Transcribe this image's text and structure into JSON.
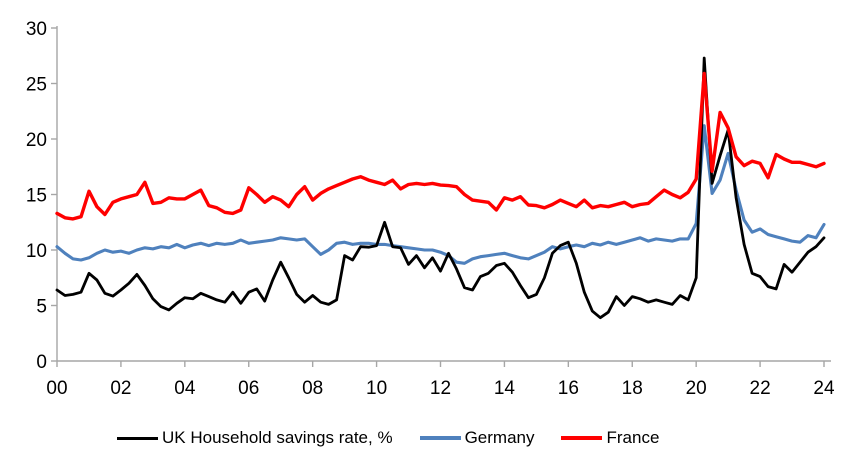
{
  "chart_data": {
    "type": "line",
    "title": "",
    "frequency": "quarterly",
    "x_start": "2000Q1",
    "x_end": "2024Q1",
    "grid": false,
    "legend_position": "bottom",
    "axis_color": "#a6a6a6",
    "label_color": "#000000",
    "x_axis": {
      "tick_labels": [
        "00",
        "02",
        "04",
        "06",
        "08",
        "10",
        "12",
        "14",
        "16",
        "18",
        "20",
        "22",
        "24"
      ],
      "tick_quarter_positions": [
        0,
        8,
        16,
        24,
        32,
        40,
        48,
        56,
        64,
        72,
        80,
        88,
        96
      ]
    },
    "y_axis": {
      "ticks": [
        0,
        5,
        10,
        15,
        20,
        25,
        30
      ],
      "range": [
        0,
        30
      ]
    },
    "draw_order": [
      1,
      0,
      2
    ],
    "series": [
      {
        "name": "UK Household savings rate, %",
        "color": "#000000",
        "stroke_width": 2.8,
        "values": [
          6.4,
          5.9,
          6.0,
          6.2,
          7.9,
          7.3,
          6.1,
          5.85,
          6.4,
          7.0,
          7.8,
          6.8,
          5.6,
          4.9,
          4.6,
          5.2,
          5.7,
          5.6,
          6.1,
          5.8,
          5.5,
          5.3,
          6.2,
          5.2,
          6.2,
          6.5,
          5.4,
          7.3,
          8.9,
          7.5,
          6.0,
          5.3,
          5.9,
          5.3,
          5.1,
          5.5,
          9.5,
          9.1,
          10.3,
          10.25,
          10.4,
          12.5,
          10.3,
          10.2,
          8.7,
          9.5,
          8.4,
          9.3,
          8.1,
          9.7,
          8.3,
          6.6,
          6.4,
          7.6,
          7.9,
          8.6,
          8.8,
          8.0,
          6.8,
          5.7,
          6.0,
          7.5,
          9.7,
          10.4,
          10.7,
          8.8,
          6.2,
          4.5,
          3.9,
          4.4,
          5.8,
          5.0,
          5.8,
          5.6,
          5.3,
          5.5,
          5.3,
          5.1,
          5.9,
          5.5,
          7.5,
          27.3,
          16.0,
          18.5,
          20.8,
          14.7,
          10.5,
          7.9,
          7.6,
          6.7,
          6.5,
          8.7,
          8.0,
          8.9,
          9.8,
          10.3,
          11.1
        ]
      },
      {
        "name": "Germany",
        "color": "#4f81bd",
        "stroke_width": 3.1,
        "values": [
          10.3,
          9.7,
          9.2,
          9.1,
          9.3,
          9.7,
          10.0,
          9.8,
          9.9,
          9.7,
          10.0,
          10.2,
          10.1,
          10.3,
          10.2,
          10.5,
          10.2,
          10.45,
          10.6,
          10.4,
          10.6,
          10.5,
          10.6,
          10.9,
          10.6,
          10.7,
          10.8,
          10.9,
          11.1,
          11.0,
          10.9,
          11.0,
          10.3,
          9.6,
          10.0,
          10.6,
          10.7,
          10.5,
          10.6,
          10.6,
          10.5,
          10.5,
          10.4,
          10.3,
          10.2,
          10.1,
          10.0,
          10.0,
          9.8,
          9.5,
          8.9,
          8.8,
          9.2,
          9.4,
          9.5,
          9.6,
          9.7,
          9.5,
          9.3,
          9.2,
          9.5,
          9.8,
          10.3,
          10.1,
          10.3,
          10.45,
          10.3,
          10.6,
          10.45,
          10.7,
          10.5,
          10.7,
          10.9,
          11.1,
          10.8,
          11.0,
          10.9,
          10.8,
          11.0,
          11.0,
          12.4,
          21.2,
          15.1,
          16.3,
          18.7,
          15.4,
          12.7,
          11.6,
          11.9,
          11.4,
          11.2,
          11.0,
          10.8,
          10.7,
          11.3,
          11.1,
          12.3
        ]
      },
      {
        "name": "France",
        "color": "#ff0000",
        "stroke_width": 3.4,
        "values": [
          13.3,
          12.9,
          12.8,
          13.0,
          15.3,
          13.9,
          13.2,
          14.3,
          14.6,
          14.8,
          15.0,
          16.1,
          14.2,
          14.3,
          14.7,
          14.6,
          14.6,
          15.0,
          15.4,
          14.0,
          13.8,
          13.4,
          13.3,
          13.6,
          15.6,
          15.0,
          14.3,
          14.8,
          14.5,
          13.9,
          15.0,
          15.7,
          14.5,
          15.1,
          15.5,
          15.8,
          16.1,
          16.4,
          16.6,
          16.3,
          16.1,
          15.9,
          16.3,
          15.5,
          15.9,
          16.0,
          15.9,
          16.0,
          15.85,
          15.8,
          15.7,
          15.0,
          14.5,
          14.4,
          14.3,
          13.6,
          14.7,
          14.5,
          14.8,
          14.05,
          14.0,
          13.8,
          14.1,
          14.5,
          14.2,
          13.9,
          14.5,
          13.8,
          14.0,
          13.9,
          14.1,
          14.3,
          13.9,
          14.1,
          14.2,
          14.8,
          15.4,
          15.0,
          14.7,
          15.2,
          16.4,
          25.9,
          17.1,
          22.4,
          21.0,
          18.4,
          17.6,
          18.0,
          17.8,
          16.5,
          18.6,
          18.2,
          17.9,
          17.9,
          17.7,
          17.5,
          17.8
        ]
      }
    ]
  },
  "legend": {
    "items": [
      {
        "label": "UK Household savings rate, %",
        "color": "#000000"
      },
      {
        "label": "Germany",
        "color": "#4f81bd"
      },
      {
        "label": "France",
        "color": "#ff0000"
      }
    ]
  }
}
